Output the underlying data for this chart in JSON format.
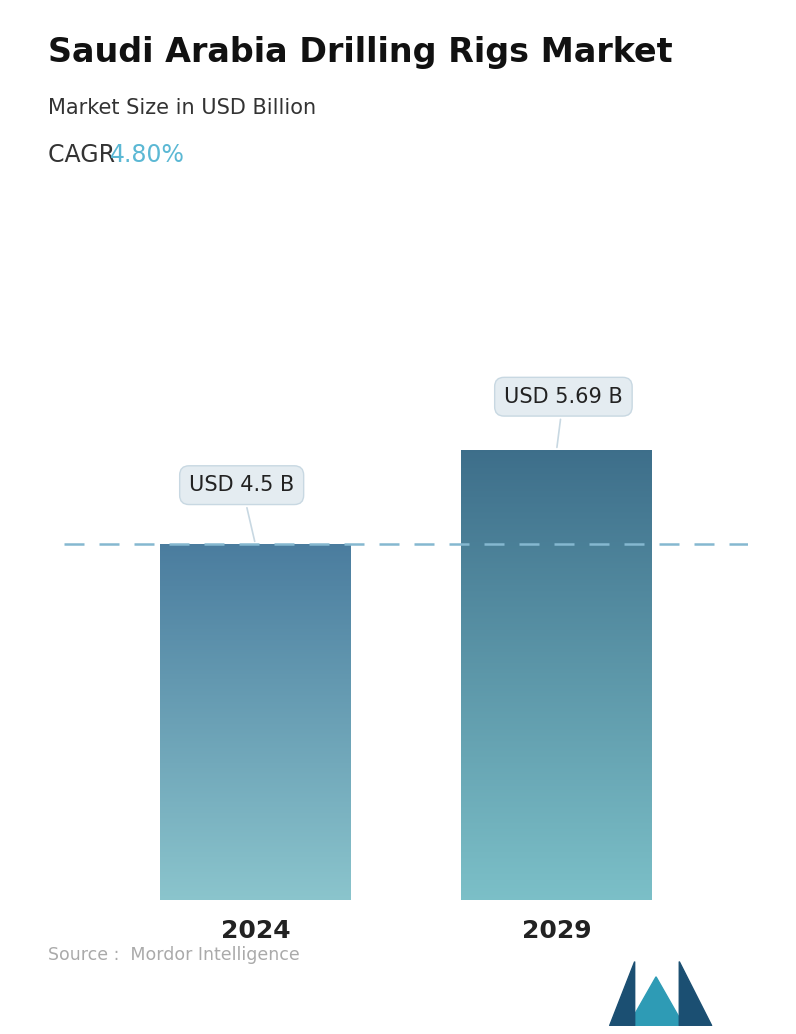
{
  "title": "Saudi Arabia Drilling Rigs Market",
  "subtitle": "Market Size in USD Billion",
  "cagr_label": "CAGR ",
  "cagr_value": "4.80%",
  "cagr_color": "#5BB8D4",
  "categories": [
    "2024",
    "2029"
  ],
  "values": [
    4.5,
    5.69
  ],
  "bar_labels": [
    "USD 4.5 B",
    "USD 5.69 B"
  ],
  "bar_top_color_1": "#4A7C9E",
  "bar_bottom_color_1": "#8AC4CC",
  "bar_top_color_2": "#3D6E8A",
  "bar_bottom_color_2": "#7BBFC7",
  "dashed_line_y": 4.5,
  "dashed_line_color": "#85B8D0",
  "background_color": "#FFFFFF",
  "source_text": "Source :  Mordor Intelligence",
  "source_color": "#AAAAAA",
  "title_fontsize": 24,
  "subtitle_fontsize": 15,
  "cagr_fontsize": 17,
  "xlabel_fontsize": 18,
  "label_fontsize": 15,
  "ylim": [
    0,
    7.2
  ],
  "bar_width": 0.28,
  "x_positions": [
    0.28,
    0.72
  ]
}
